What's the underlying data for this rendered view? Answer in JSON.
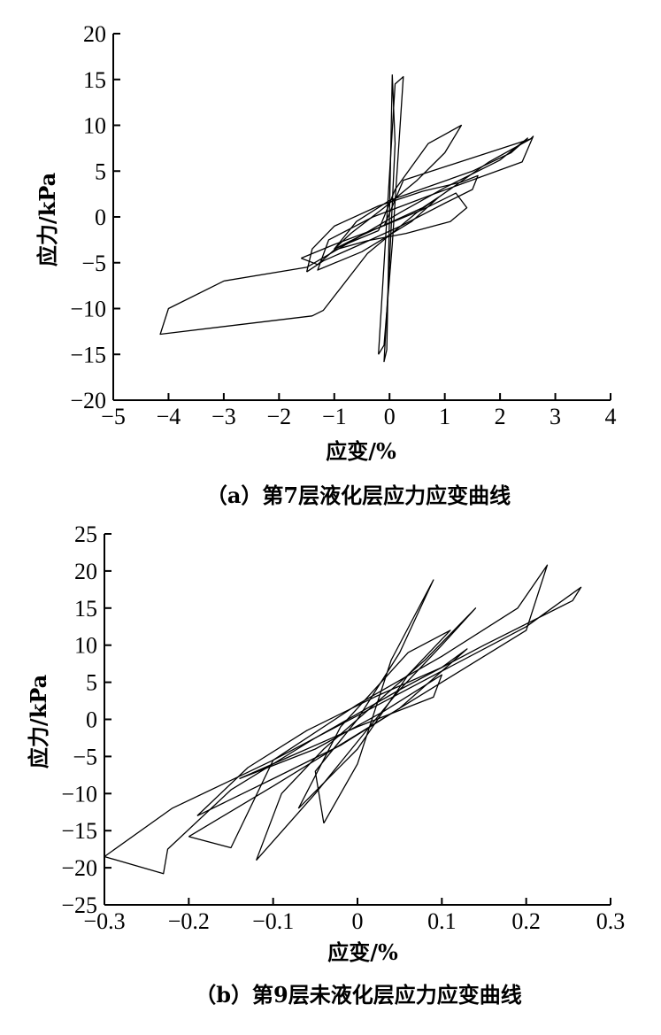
{
  "chart_data": [
    {
      "type": "line",
      "caption": "（a）第7层液化层应力应变曲线",
      "xlabel": "应变/%",
      "ylabel": "应力/kPa",
      "xlim": [
        -5,
        4
      ],
      "ylim": [
        -20,
        20
      ],
      "xticks": [
        -5,
        -4,
        -3,
        -2,
        -1,
        0,
        1,
        2,
        3,
        4
      ],
      "yticks": [
        -20,
        -15,
        -10,
        -5,
        0,
        5,
        10,
        15,
        20
      ],
      "xtick_labels": [
        "−5",
        "−4",
        "−3",
        "−2",
        "−1",
        "0",
        "1",
        "2",
        "3",
        "4"
      ],
      "ytick_labels": [
        "−20",
        "−15",
        "−10",
        "−5",
        "0",
        "5",
        "10",
        "15",
        "20"
      ],
      "grid": false,
      "color": "#000000",
      "series": [
        {
          "x": [
            -0.1,
            0.25,
            2.55,
            2.6,
            2.4,
            0.8,
            -0.3,
            -1.1,
            -1.3,
            -0.5,
            0.4,
            0.9,
            0.6,
            -0.5,
            -1.5,
            -3.0,
            -4.0,
            -4.15,
            -1.4,
            -1.2,
            -0.4,
            0.5,
            1.8,
            2.55
          ],
          "y": [
            -1.0,
            4.0,
            8.5,
            8.8,
            6.0,
            2.5,
            0.0,
            -2.5,
            -5.8,
            -3.8,
            -0.5,
            2.2,
            1.0,
            -2.0,
            -5.5,
            -7.0,
            -10.0,
            -12.8,
            -10.8,
            -10.2,
            -4.0,
            0.5,
            6.0,
            8.5
          ]
        },
        {
          "x": [
            -1.5,
            -1.2,
            -0.6,
            0.2,
            1.0,
            1.5,
            1.6,
            1.3,
            0.6,
            -0.2,
            -1.0,
            -1.4,
            -1.5
          ],
          "y": [
            -6.0,
            -4.8,
            -3.2,
            -1.0,
            1.5,
            3.0,
            4.5,
            3.8,
            2.8,
            1.2,
            -1.0,
            -3.5,
            -6.0
          ]
        },
        {
          "x": [
            -1.6,
            -1.0,
            -0.2,
            0.6,
            1.2,
            1.4,
            1.1,
            0.3,
            -0.4,
            -1.0,
            -1.3,
            -1.6
          ],
          "y": [
            -4.5,
            -3.0,
            -1.2,
            0.8,
            2.6,
            1.0,
            -0.5,
            -1.8,
            -2.6,
            -3.6,
            -5.2,
            -4.5
          ]
        },
        {
          "x": [
            -0.2,
            0.1,
            0.7,
            1.3,
            1.0,
            0.5,
            -0.1,
            -0.7,
            -1.0,
            -0.2
          ],
          "y": [
            -1.5,
            3.0,
            8.0,
            10.0,
            7.0,
            4.0,
            1.0,
            -1.8,
            -3.5,
            -1.5
          ]
        },
        {
          "x": [
            -1.0,
            -0.5,
            0.2,
            1.0,
            2.0,
            2.5,
            2.2,
            1.5,
            0.8,
            0.0,
            -0.6,
            -1.0
          ],
          "y": [
            -3.5,
            -2.0,
            0.5,
            3.2,
            6.2,
            8.6,
            7.0,
            5.0,
            3.5,
            1.8,
            -0.5,
            -3.5
          ]
        },
        {
          "x": [
            -0.05,
            0.05,
            0.1,
            0.0,
            -0.1,
            -0.05
          ],
          "y": [
            -14.5,
            15.5,
            8.0,
            -5.0,
            -15.8,
            -14.5
          ]
        },
        {
          "x": [
            -0.2,
            0.1,
            0.25,
            0.05,
            -0.1,
            -0.2
          ],
          "y": [
            -15.0,
            14.5,
            15.3,
            -3.0,
            -14.0,
            -15.0
          ]
        }
      ]
    },
    {
      "type": "line",
      "caption": "（b）第9层未液化层应力应变曲线",
      "xlabel": "应变/%",
      "ylabel": "应力/kPa",
      "xlim": [
        -0.3,
        0.3
      ],
      "ylim": [
        -25,
        25
      ],
      "xticks": [
        -0.3,
        -0.2,
        -0.1,
        0,
        0.1,
        0.2,
        0.3
      ],
      "yticks": [
        -25,
        -20,
        -15,
        -10,
        -5,
        0,
        5,
        10,
        15,
        20,
        25
      ],
      "xtick_labels": [
        "−0.3",
        "−0.2",
        "−0.1",
        "0",
        "0.1",
        "0.2",
        "0.3"
      ],
      "ytick_labels": [
        "−25",
        "−20",
        "−15",
        "−10",
        "−5",
        "0",
        "5",
        "10",
        "15",
        "20",
        "25"
      ],
      "grid": false,
      "color": "#000000",
      "series": [
        {
          "x": [
            -0.3,
            -0.22,
            -0.1,
            0.0,
            0.1,
            0.2,
            0.265,
            0.255,
            0.15,
            0.05,
            -0.05,
            -0.15,
            -0.225,
            -0.23,
            -0.3
          ],
          "y": [
            -18.5,
            -12.0,
            -5.5,
            0.5,
            6.5,
            12.5,
            17.8,
            16.0,
            10.0,
            4.0,
            -2.5,
            -9.5,
            -17.5,
            -20.8,
            -18.5
          ]
        },
        {
          "x": [
            -0.2,
            -0.1,
            0.0,
            0.1,
            0.2,
            0.225,
            0.19,
            0.1,
            0.0,
            -0.1,
            -0.15,
            -0.2
          ],
          "y": [
            -15.8,
            -9.0,
            -2.0,
            5.0,
            12.0,
            20.8,
            15.0,
            8.5,
            2.0,
            -5.5,
            -17.3,
            -15.8
          ]
        },
        {
          "x": [
            -0.12,
            -0.05,
            0.0,
            0.05,
            0.1,
            0.14,
            0.08,
            0.02,
            -0.04,
            -0.09,
            -0.12
          ],
          "y": [
            -19.0,
            -10.0,
            -3.0,
            4.0,
            10.0,
            15.0,
            8.0,
            2.0,
            -4.0,
            -10.0,
            -19.0
          ]
        },
        {
          "x": [
            -0.19,
            -0.1,
            -0.02,
            0.05,
            0.13,
            0.1,
            0.02,
            -0.06,
            -0.13,
            -0.19
          ],
          "y": [
            -13.0,
            -8.0,
            -3.5,
            1.5,
            9.5,
            7.0,
            3.0,
            -1.5,
            -6.5,
            -13.0
          ]
        },
        {
          "x": [
            -0.14,
            -0.05,
            0.03,
            0.1,
            0.09,
            0.0,
            -0.08,
            -0.14
          ],
          "y": [
            -8.0,
            -4.0,
            1.0,
            6.0,
            3.0,
            -1.0,
            -5.0,
            -8.0
          ]
        },
        {
          "x": [
            -0.07,
            0.0,
            0.06,
            0.11,
            0.06,
            -0.02,
            -0.07
          ],
          "y": [
            -12.0,
            -4.0,
            6.0,
            12.0,
            9.0,
            -1.0,
            -12.0
          ]
        },
        {
          "x": [
            -0.04,
            0.0,
            0.04,
            0.09,
            0.05,
            0.0,
            -0.05,
            -0.04
          ],
          "y": [
            -14.0,
            -6.0,
            8.0,
            18.8,
            9.0,
            0.0,
            -7.0,
            -14.0
          ]
        }
      ]
    }
  ]
}
